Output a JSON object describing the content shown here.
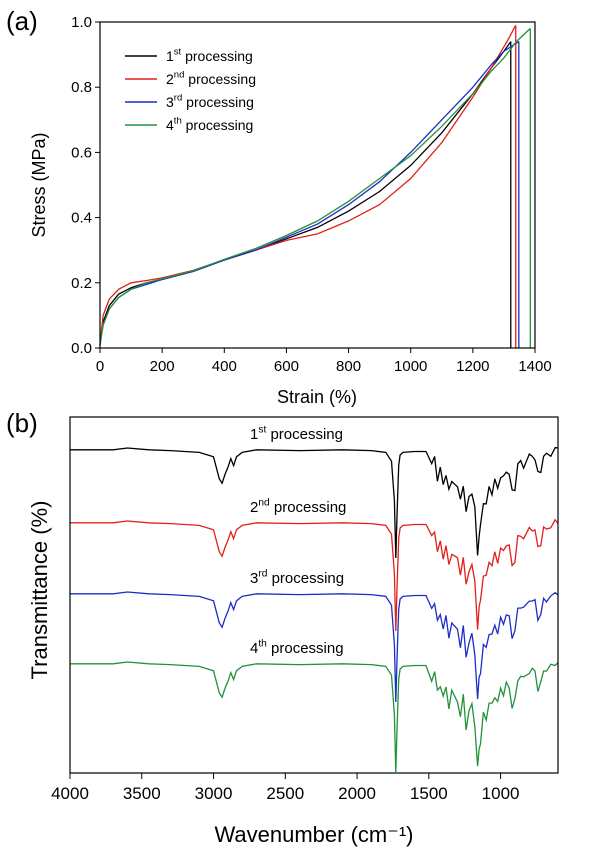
{
  "chart_data": [
    {
      "type": "line",
      "panel_label": "(a)",
      "xlabel": "Strain (%)",
      "ylabel": "Stress (MPa)",
      "xlim": [
        0,
        1400
      ],
      "ylim": [
        0,
        1.0
      ],
      "xticks": [
        0,
        200,
        400,
        600,
        800,
        1000,
        1200,
        1400
      ],
      "yticks": [
        0.0,
        0.2,
        0.4,
        0.6,
        0.8,
        1.0
      ],
      "xtick_labels": [
        "0",
        "200",
        "400",
        "600",
        "800",
        "1000",
        "1200",
        "1400"
      ],
      "ytick_labels": [
        "0.0",
        "0.2",
        "0.4",
        "0.6",
        "0.8",
        "1.0"
      ],
      "legend_position": "top-left",
      "series": [
        {
          "base": "1",
          "sup": "st",
          "rest": " processing",
          "color": "#000000",
          "break_x": 1322,
          "break_y": 0.94,
          "x": [
            0,
            10,
            30,
            60,
            100,
            150,
            200,
            300,
            400,
            500,
            600,
            700,
            800,
            900,
            1000,
            1100,
            1200,
            1260,
            1300,
            1322
          ],
          "y": [
            0.01,
            0.08,
            0.13,
            0.165,
            0.185,
            0.2,
            0.21,
            0.235,
            0.27,
            0.3,
            0.335,
            0.37,
            0.42,
            0.48,
            0.56,
            0.66,
            0.78,
            0.86,
            0.91,
            0.94
          ]
        },
        {
          "base": "2",
          "sup": "nd",
          "rest": " processing",
          "color": "#e0201b",
          "break_x": 1338,
          "break_y": 0.99,
          "x": [
            0,
            10,
            30,
            60,
            100,
            150,
            200,
            300,
            400,
            500,
            600,
            700,
            800,
            900,
            1000,
            1100,
            1200,
            1260,
            1310,
            1338
          ],
          "y": [
            0.01,
            0.1,
            0.15,
            0.18,
            0.2,
            0.207,
            0.215,
            0.238,
            0.27,
            0.3,
            0.33,
            0.35,
            0.39,
            0.44,
            0.52,
            0.63,
            0.77,
            0.86,
            0.94,
            0.99
          ]
        },
        {
          "base": "3",
          "sup": "rd",
          "rest": " processing",
          "color": "#1c2dc8",
          "break_x": 1348,
          "break_y": 0.94,
          "x": [
            0,
            10,
            30,
            60,
            100,
            150,
            200,
            300,
            400,
            500,
            600,
            700,
            800,
            900,
            1000,
            1100,
            1200,
            1260,
            1300,
            1348
          ],
          "y": [
            0.01,
            0.07,
            0.12,
            0.155,
            0.18,
            0.195,
            0.21,
            0.235,
            0.27,
            0.3,
            0.34,
            0.38,
            0.44,
            0.51,
            0.6,
            0.7,
            0.8,
            0.87,
            0.91,
            0.94
          ]
        },
        {
          "base": "4",
          "sup": "th",
          "rest": " processing",
          "color": "#23923a",
          "break_x": 1385,
          "break_y": 0.98,
          "x": [
            0,
            10,
            30,
            60,
            100,
            150,
            200,
            300,
            400,
            500,
            600,
            700,
            800,
            900,
            1000,
            1100,
            1200,
            1260,
            1300,
            1340,
            1385
          ],
          "y": [
            0.01,
            0.07,
            0.12,
            0.155,
            0.18,
            0.2,
            0.212,
            0.237,
            0.272,
            0.305,
            0.345,
            0.39,
            0.45,
            0.52,
            0.59,
            0.68,
            0.78,
            0.85,
            0.89,
            0.94,
            0.98
          ]
        }
      ]
    },
    {
      "type": "line",
      "panel_label": "(b)",
      "xlabel": "Wavenumber (cm⁻¹)",
      "ylabel": "Transmittance (%)",
      "xlim": [
        4000,
        600
      ],
      "xticks": [
        4000,
        3500,
        3000,
        2500,
        2000,
        1500,
        1000
      ],
      "xtick_labels": [
        "4000",
        "3500",
        "3000",
        "2500",
        "2000",
        "1500",
        "1000"
      ],
      "y_ticks_shown": false,
      "series": [
        {
          "base": "1",
          "sup": "st",
          "rest": " processing",
          "color": "#000000",
          "baseline": 0.0
        },
        {
          "base": "2",
          "sup": "nd",
          "rest": " processing",
          "color": "#e0201b",
          "baseline": 1.0
        },
        {
          "base": "3",
          "sup": "rd",
          "rest": " processing",
          "color": "#1c2dc8",
          "baseline": 2.0
        },
        {
          "base": "4",
          "sup": "th",
          "rest": " processing",
          "color": "#23923a",
          "baseline": 3.0
        }
      ],
      "spectrum_profile": {
        "wavenumber": [
          4000,
          3700,
          3600,
          3450,
          3300,
          3100,
          3000,
          2960,
          2940,
          2920,
          2900,
          2880,
          2860,
          2840,
          2800,
          2700,
          2400,
          2100,
          1900,
          1800,
          1760,
          1740,
          1730,
          1720,
          1710,
          1700,
          1680,
          1600,
          1520,
          1480,
          1460,
          1440,
          1420,
          1400,
          1380,
          1360,
          1340,
          1300,
          1280,
          1260,
          1240,
          1220,
          1200,
          1180,
          1160,
          1150,
          1140,
          1120,
          1100,
          1080,
          1060,
          1040,
          1020,
          1000,
          980,
          960,
          940,
          920,
          900,
          880,
          860,
          840,
          800,
          780,
          760,
          740,
          720,
          700,
          680,
          650,
          620,
          600
        ],
        "depth": [
          0.02,
          0.02,
          0.0,
          0.02,
          0.03,
          0.05,
          0.1,
          0.35,
          0.4,
          0.3,
          0.22,
          0.12,
          0.2,
          0.1,
          0.05,
          0.02,
          0.03,
          0.02,
          0.03,
          0.05,
          0.15,
          0.6,
          1.25,
          0.7,
          0.2,
          0.08,
          0.05,
          0.04,
          0.04,
          0.2,
          0.1,
          0.35,
          0.25,
          0.4,
          0.3,
          0.5,
          0.35,
          0.45,
          0.6,
          0.4,
          0.75,
          0.55,
          0.5,
          0.7,
          1.2,
          1.0,
          0.9,
          0.6,
          0.65,
          0.45,
          0.5,
          0.38,
          0.45,
          0.32,
          0.35,
          0.25,
          0.3,
          0.5,
          0.45,
          0.2,
          0.15,
          0.2,
          0.1,
          0.08,
          0.12,
          0.3,
          0.25,
          0.1,
          0.08,
          0.06,
          0.02,
          0.0
        ]
      }
    }
  ]
}
